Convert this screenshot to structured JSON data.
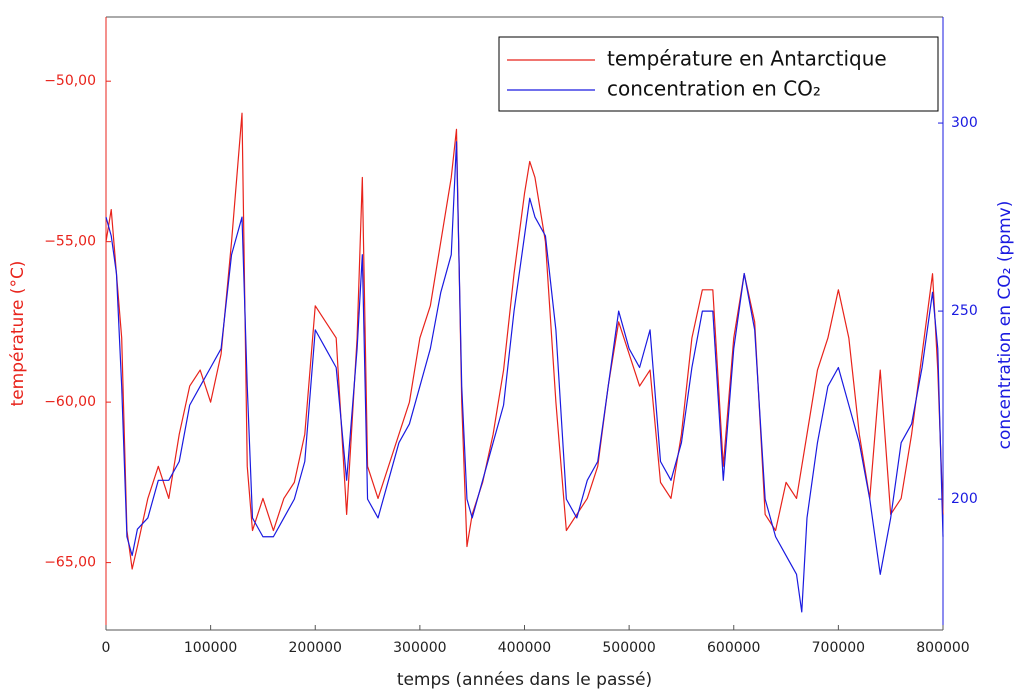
{
  "chart_data": {
    "type": "line",
    "xlabel": "temps (années dans le passé)",
    "ylabel": "température (°C)",
    "y2label": "concentration en CO₂ (ppmv)",
    "x": [
      0,
      5000,
      10000,
      15000,
      20000,
      25000,
      30000,
      40000,
      50000,
      60000,
      70000,
      80000,
      90000,
      100000,
      110000,
      120000,
      125000,
      130000,
      135000,
      140000,
      150000,
      160000,
      170000,
      180000,
      190000,
      200000,
      210000,
      220000,
      230000,
      240000,
      245000,
      250000,
      260000,
      270000,
      280000,
      290000,
      300000,
      310000,
      320000,
      330000,
      335000,
      340000,
      345000,
      350000,
      360000,
      370000,
      380000,
      390000,
      400000,
      405000,
      410000,
      420000,
      430000,
      440000,
      450000,
      460000,
      470000,
      480000,
      490000,
      500000,
      510000,
      520000,
      530000,
      540000,
      550000,
      560000,
      570000,
      580000,
      590000,
      600000,
      610000,
      620000,
      630000,
      640000,
      650000,
      660000,
      665000,
      670000,
      680000,
      690000,
      700000,
      710000,
      720000,
      730000,
      740000,
      750000,
      760000,
      770000,
      780000,
      790000,
      795000,
      800000
    ],
    "series": [
      {
        "name": "température en Antarctique",
        "color": "#e8231b",
        "axis": "y",
        "values": [
          -55,
          -54,
          -56,
          -58,
          -64,
          -65.2,
          -64.5,
          -63,
          -62,
          -63,
          -61,
          -59.5,
          -59,
          -60,
          -58.5,
          -55,
          -53,
          -51,
          -62,
          -64,
          -63,
          -64,
          -63,
          -62.5,
          -61,
          -57,
          -57.5,
          -58,
          -63.5,
          -58,
          -53,
          -62,
          -63,
          -62,
          -61,
          -60,
          -58,
          -57,
          -55,
          -53,
          -51.5,
          -60,
          -64.5,
          -63.5,
          -62.5,
          -61,
          -59,
          -56,
          -53.5,
          -52.5,
          -53,
          -55,
          -60,
          -64,
          -63.5,
          -63,
          -62,
          -59.5,
          -57.5,
          -58.5,
          -59.5,
          -59,
          -62.5,
          -63,
          -61,
          -58,
          -56.5,
          -56.5,
          -62,
          -58,
          -56,
          -57.5,
          -63.5,
          -64,
          -62.5,
          -63,
          -62,
          -61,
          -59,
          -58,
          -56.5,
          -58,
          -61,
          -63,
          -59,
          -63.5,
          -63,
          -61,
          -58.5,
          -56,
          -59,
          -63.5
        ]
      },
      {
        "name": "concentration en CO₂",
        "color": "#1a1ae0",
        "axis": "y2",
        "values": [
          275,
          270,
          260,
          230,
          190,
          185,
          192,
          195,
          205,
          205,
          210,
          225,
          230,
          235,
          240,
          265,
          270,
          275,
          230,
          195,
          190,
          190,
          195,
          200,
          210,
          245,
          240,
          235,
          205,
          240,
          265,
          200,
          195,
          205,
          215,
          220,
          230,
          240,
          255,
          265,
          295,
          230,
          200,
          195,
          205,
          215,
          225,
          250,
          270,
          280,
          275,
          270,
          245,
          200,
          195,
          205,
          210,
          230,
          250,
          240,
          235,
          245,
          210,
          205,
          215,
          235,
          250,
          250,
          205,
          240,
          260,
          245,
          200,
          190,
          185,
          180,
          170,
          195,
          215,
          230,
          235,
          225,
          215,
          200,
          180,
          195,
          215,
          220,
          235,
          255,
          240,
          190
        ]
      }
    ],
    "xlim": [
      0,
      800000
    ],
    "xticks": [
      0,
      100000,
      200000,
      300000,
      400000,
      500000,
      600000,
      700000,
      800000
    ],
    "ylim": [
      -67.1,
      -48.0
    ],
    "yticks": [
      {
        "value": -65,
        "label": "−65,00"
      },
      {
        "value": -60,
        "label": "−60,00"
      },
      {
        "value": -55,
        "label": "−55,00"
      },
      {
        "value": -50,
        "label": "−50,00"
      }
    ],
    "y2lim": [
      165.2,
      328.2
    ],
    "y2ticks": [
      200,
      250,
      300
    ],
    "legend": "upper right"
  }
}
